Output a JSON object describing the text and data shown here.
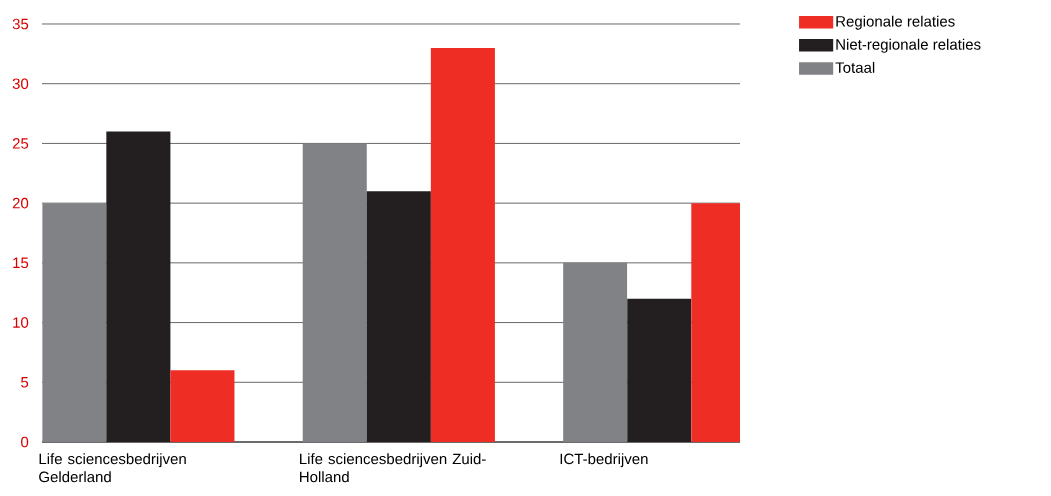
{
  "chart_data": {
    "type": "bar",
    "categories": [
      "Life sciencesbedrijven Gelderland",
      "Life sciencesbedrijven Zuid-Holland",
      "ICT-bedrijven"
    ],
    "series": [
      {
        "name": "Totaal",
        "color": "#808285",
        "values": [
          20,
          25,
          15
        ]
      },
      {
        "name": "Niet-regionale relaties",
        "color": "#231f20",
        "values": [
          26,
          21,
          12
        ]
      },
      {
        "name": "Regionale relaties",
        "color": "#ee2e24",
        "values": [
          6,
          33,
          20
        ]
      }
    ],
    "ylim": [
      0,
      35
    ],
    "yticks": [
      0,
      5,
      10,
      15,
      20,
      25,
      30,
      35
    ],
    "grid": "y",
    "legend": "top right"
  }
}
